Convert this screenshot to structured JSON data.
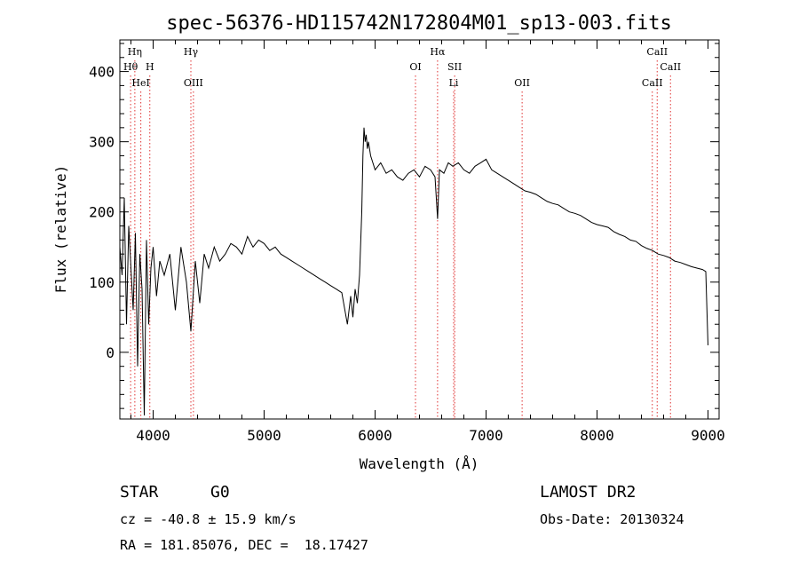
{
  "chart_data": {
    "type": "line",
    "title": "spec-56376-HD115742N172804M01_sp13-003.fits",
    "xlabel": "Wavelength (Å)",
    "ylabel": "Flux (relative)",
    "xlim": [
      3700,
      9100
    ],
    "ylim": [
      -95,
      445
    ],
    "x_ticks": [
      4000,
      5000,
      6000,
      7000,
      8000,
      9000
    ],
    "y_ticks": [
      0,
      100,
      200,
      300,
      400
    ],
    "grid": false,
    "series": [
      {
        "x": [
          3700,
          3720,
          3740,
          3760,
          3780,
          3800,
          3820,
          3840,
          3860,
          3880,
          3900,
          3920,
          3940,
          3960,
          3980,
          4000,
          4030,
          4060,
          4100,
          4150,
          4200,
          4250,
          4300,
          4340,
          4380,
          4420,
          4460,
          4500,
          4550,
          4600,
          4650,
          4700,
          4750,
          4800,
          4850,
          4900,
          4950,
          5000,
          5050,
          5100,
          5150,
          5200,
          5250,
          5300,
          5350,
          5400,
          5450,
          5500,
          5550,
          5600,
          5650,
          5700,
          5750,
          5780,
          5800,
          5820,
          5840,
          5860,
          5880,
          5890,
          5900,
          5910,
          5920,
          5930,
          5940,
          5960,
          5980,
          6000,
          6050,
          6100,
          6150,
          6200,
          6250,
          6300,
          6350,
          6400,
          6450,
          6500,
          6540,
          6563,
          6580,
          6620,
          6660,
          6700,
          6750,
          6800,
          6850,
          6900,
          6950,
          7000,
          7050,
          7100,
          7150,
          7200,
          7250,
          7300,
          7350,
          7400,
          7450,
          7500,
          7550,
          7600,
          7650,
          7700,
          7750,
          7800,
          7850,
          7900,
          7950,
          8000,
          8050,
          8100,
          8150,
          8200,
          8250,
          8300,
          8350,
          8400,
          8450,
          8500,
          8550,
          8600,
          8650,
          8700,
          8750,
          8800,
          8850,
          8900,
          8950,
          8980,
          8990,
          9000
        ],
        "y": [
          150,
          110,
          220,
          40,
          180,
          120,
          60,
          170,
          -20,
          140,
          90,
          -90,
          160,
          40,
          120,
          150,
          80,
          130,
          110,
          140,
          60,
          150,
          100,
          30,
          130,
          70,
          140,
          120,
          150,
          130,
          140,
          155,
          150,
          140,
          165,
          150,
          160,
          155,
          145,
          150,
          140,
          135,
          130,
          125,
          120,
          115,
          110,
          105,
          100,
          95,
          90,
          85,
          40,
          80,
          50,
          90,
          70,
          110,
          200,
          280,
          320,
          300,
          310,
          290,
          300,
          280,
          270,
          260,
          270,
          255,
          260,
          250,
          245,
          255,
          260,
          250,
          265,
          260,
          250,
          190,
          260,
          255,
          270,
          265,
          270,
          260,
          255,
          265,
          270,
          275,
          260,
          255,
          250,
          245,
          240,
          235,
          230,
          228,
          225,
          220,
          215,
          212,
          210,
          205,
          200,
          198,
          195,
          190,
          185,
          182,
          180,
          178,
          172,
          168,
          165,
          160,
          158,
          152,
          148,
          145,
          140,
          138,
          135,
          130,
          128,
          125,
          122,
          120,
          118,
          115,
          60,
          10
        ]
      }
    ],
    "line_markers": [
      {
        "label": "Hη",
        "x": 3835,
        "row": 0
      },
      {
        "label": "Hθ",
        "x": 3797,
        "row": 1
      },
      {
        "label": "H",
        "x": 3970,
        "row": 1
      },
      {
        "label": "HeI",
        "x": 3889,
        "row": 2
      },
      {
        "label": "Hγ",
        "x": 4340,
        "row": 0
      },
      {
        "label": "OIII",
        "x": 4363,
        "row": 2
      },
      {
        "label": "Hα",
        "x": 6563,
        "row": 0
      },
      {
        "label": "OI",
        "x": 6364,
        "row": 1
      },
      {
        "label": "SII",
        "x": 6717,
        "row": 1
      },
      {
        "label": "Li",
        "x": 6708,
        "row": 2
      },
      {
        "label": "OII",
        "x": 7325,
        "row": 2
      },
      {
        "label": "CaII",
        "x": 8542,
        "row": 0
      },
      {
        "label": "CaII",
        "x": 8662,
        "row": 1
      },
      {
        "label": "CaII",
        "x": 8498,
        "row": 2
      }
    ]
  },
  "info": {
    "object_class": "STAR",
    "subclass": "G0",
    "survey": "LAMOST DR2",
    "redshift": "cz = -40.8 ± 15.9 km/s",
    "obs_date": "Obs-Date: 20130324",
    "coords": "RA = 181.85076, DEC =  18.17427"
  },
  "colors": {
    "line": "#000000",
    "marker": "#e03030",
    "axis": "#000000",
    "background": "#ffffff"
  }
}
